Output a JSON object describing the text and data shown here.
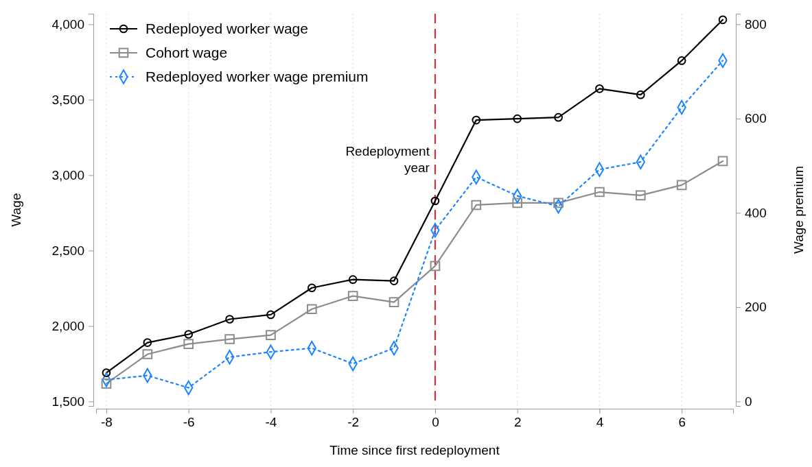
{
  "chart_data": {
    "type": "line",
    "xlabel": "Time since first redeployment",
    "ylabel": "Wage",
    "y2label": "Wage premium",
    "x": [
      -8,
      -7,
      -6,
      -5,
      -4,
      -3,
      -2,
      -1,
      0,
      1,
      2,
      3,
      4,
      5,
      6,
      7
    ],
    "xlim": [
      -8.25,
      7.25
    ],
    "xticks": [
      -8,
      -6,
      -4,
      -2,
      0,
      2,
      4,
      6
    ],
    "ylim": [
      1470,
      4070
    ],
    "yticks": [
      {
        "value": 1500,
        "label": "1,500"
      },
      {
        "value": 2000,
        "label": "2,000"
      },
      {
        "value": 2500,
        "label": "2,500"
      },
      {
        "value": 3000,
        "label": "3,000"
      },
      {
        "value": 3500,
        "label": "3,500"
      },
      {
        "value": 4000,
        "label": "4,000"
      }
    ],
    "y2lim": [
      -9.6,
      822.4
    ],
    "y2ticks": [
      0,
      200,
      400,
      600,
      800
    ],
    "grid": "x",
    "legend": "top left",
    "series": [
      {
        "name": "Redeployed worker wage",
        "color": "#000000",
        "marker": "circle",
        "line_style": "solid",
        "values": [
          1690,
          1890,
          1945,
          2045,
          2075,
          2253,
          2308,
          2299,
          2829,
          3365,
          3374,
          3383,
          3573,
          3533,
          3759,
          4030
        ]
      },
      {
        "name": "Cohort wage",
        "color": "#8c8c8c",
        "marker": "square",
        "line_style": "solid",
        "values": [
          1618,
          1813,
          1881,
          1913,
          1940,
          2112,
          2199,
          2158,
          2398,
          2802,
          2816,
          2816,
          2888,
          2866,
          2934,
          3093
        ]
      },
      {
        "name": "Redeployed worker wage premium",
        "color": "#1a85ff",
        "marker": "diamond",
        "line_style": "dotted",
        "axis": "y2",
        "values": [
          46,
          55,
          29,
          94,
          105,
          113,
          80,
          113,
          363,
          476,
          436,
          414,
          492,
          508,
          624,
          723
        ]
      }
    ],
    "ref_lines": [
      {
        "axis": "x",
        "value": 0,
        "label": "Redeployment year",
        "color": "#e8202a",
        "line_style": "dashed"
      }
    ]
  }
}
